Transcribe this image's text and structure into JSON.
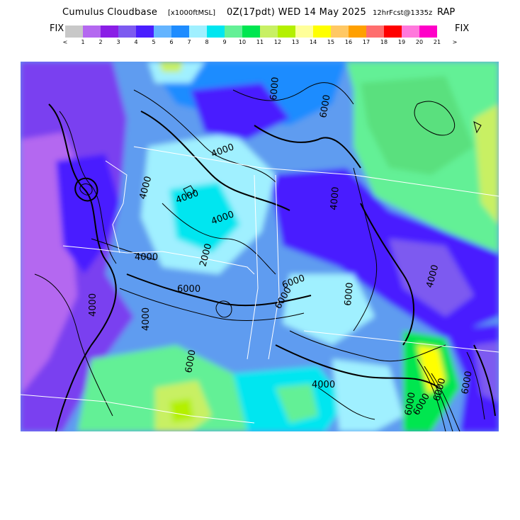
{
  "title": {
    "main": "Cumulus Cloudbase",
    "units": "[x1000ftMSL]",
    "time": "0Z(17pdt) WED 14 May 2025",
    "forecast": "12hrFcst@1335z",
    "model": "RAP"
  },
  "legend": {
    "fix_left": "FIX",
    "fix_right": "FIX",
    "colors": [
      "#c8c8c8",
      "#b468f0",
      "#8a1ee6",
      "#7d5af0",
      "#4a1eff",
      "#64b4ff",
      "#1e8cff",
      "#a0f0ff",
      "#00e6f0",
      "#64f096",
      "#00e650",
      "#c8f064",
      "#b4f000",
      "#ffff9a",
      "#ffff00",
      "#ffc864",
      "#ffa000",
      "#ff6e6e",
      "#ff0000",
      "#ff78dc",
      "#ff00c8"
    ],
    "ticks": [
      "<",
      "1",
      "2",
      "3",
      "4",
      "5",
      "6",
      "7",
      "8",
      "9",
      "10",
      "11",
      "12",
      "13",
      "14",
      "15",
      "16",
      "17",
      "18",
      "19",
      "20",
      "21",
      ">"
    ]
  },
  "map": {
    "contour_labels": [
      "6000",
      "4000",
      "4000",
      "4000",
      "4000",
      "2000",
      "6000",
      "4000",
      "6000",
      "4000",
      "6000",
      "4000",
      "6000",
      "4000",
      "6000",
      "4000",
      "6000",
      "6000",
      "4000",
      "6000",
      "6000",
      "6000",
      "6000"
    ]
  }
}
